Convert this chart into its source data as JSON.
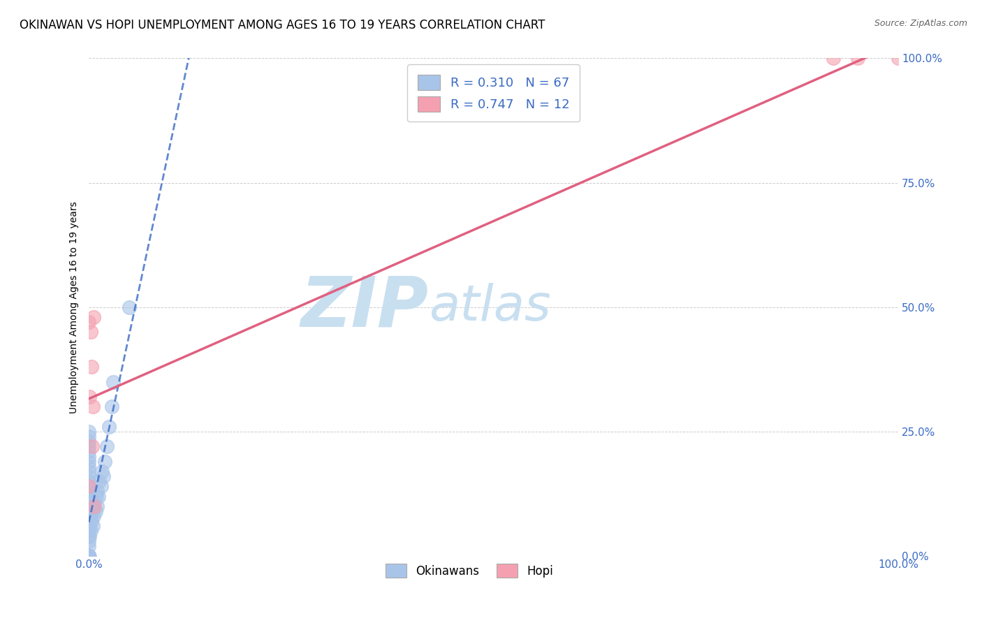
{
  "title": "OKINAWAN VS HOPI UNEMPLOYMENT AMONG AGES 16 TO 19 YEARS CORRELATION CHART",
  "source": "Source: ZipAtlas.com",
  "ylabel": "Unemployment Among Ages 16 to 19 years",
  "legend_label1": "R = 0.310   N = 67",
  "legend_label2": "R = 0.747   N = 12",
  "legend_bottom1": "Okinawans",
  "legend_bottom2": "Hopi",
  "okinawan_color": "#a8c4e8",
  "hopi_color": "#f4a0b0",
  "okinawan_line_color": "#3a6bc4",
  "hopi_line_color": "#e06080",
  "watermark_zip": "ZIP",
  "watermark_atlas": "atlas",
  "watermark_color_zip": "#c8dff0",
  "watermark_color_atlas": "#c8dff0",
  "okinawan_scatter_x": [
    0.0,
    0.0,
    0.0,
    0.0,
    0.0,
    0.0,
    0.0,
    0.0,
    0.0,
    0.0,
    0.0,
    0.0,
    0.0,
    0.0,
    0.0,
    0.0,
    0.0,
    0.0,
    0.0,
    0.0,
    0.0,
    0.0,
    0.0,
    0.0,
    0.0,
    0.0,
    0.0,
    0.0,
    0.0,
    0.0,
    0.0,
    0.0,
    0.0,
    0.0,
    0.0,
    0.0,
    0.0,
    0.0,
    0.0,
    0.0,
    0.0,
    0.0,
    0.001,
    0.001,
    0.002,
    0.002,
    0.003,
    0.004,
    0.005,
    0.005,
    0.006,
    0.007,
    0.008,
    0.009,
    0.01,
    0.01,
    0.012,
    0.013,
    0.015,
    0.016,
    0.018,
    0.02,
    0.022,
    0.025,
    0.028,
    0.03,
    0.05
  ],
  "okinawan_scatter_y": [
    0.0,
    0.0,
    0.0,
    0.0,
    0.0,
    0.0,
    0.0,
    0.0,
    0.0,
    0.0,
    0.0,
    0.0,
    0.0,
    0.0,
    0.0,
    0.0,
    0.0,
    0.0,
    0.02,
    0.03,
    0.04,
    0.05,
    0.06,
    0.07,
    0.08,
    0.09,
    0.1,
    0.11,
    0.12,
    0.13,
    0.14,
    0.15,
    0.16,
    0.17,
    0.18,
    0.19,
    0.2,
    0.21,
    0.22,
    0.23,
    0.24,
    0.25,
    0.04,
    0.06,
    0.05,
    0.08,
    0.07,
    0.09,
    0.06,
    0.1,
    0.08,
    0.11,
    0.09,
    0.12,
    0.1,
    0.13,
    0.12,
    0.15,
    0.14,
    0.17,
    0.16,
    0.19,
    0.22,
    0.26,
    0.3,
    0.35,
    0.5
  ],
  "hopi_scatter_x": [
    0.0,
    0.0,
    0.001,
    0.002,
    0.003,
    0.004,
    0.005,
    0.006,
    0.007,
    0.92,
    0.95,
    1.0
  ],
  "hopi_scatter_y": [
    0.14,
    0.47,
    0.32,
    0.45,
    0.38,
    0.22,
    0.3,
    0.48,
    0.1,
    1.0,
    1.0,
    1.0
  ],
  "xlim": [
    0.0,
    1.0
  ],
  "ylim": [
    0.0,
    1.0
  ],
  "grid_color": "#cccccc",
  "background_color": "#ffffff",
  "title_fontsize": 12,
  "axis_label_fontsize": 10,
  "tick_fontsize": 11,
  "source_fontsize": 9,
  "ytick_vals": [
    0.0,
    0.25,
    0.5,
    0.75,
    1.0
  ],
  "ytick_labels": [
    "0.0%",
    "25.0%",
    "50.0%",
    "75.0%",
    "100.0%"
  ],
  "xtick_vals": [
    0.0,
    1.0
  ],
  "xtick_labels": [
    "0.0%",
    "100.0%"
  ]
}
